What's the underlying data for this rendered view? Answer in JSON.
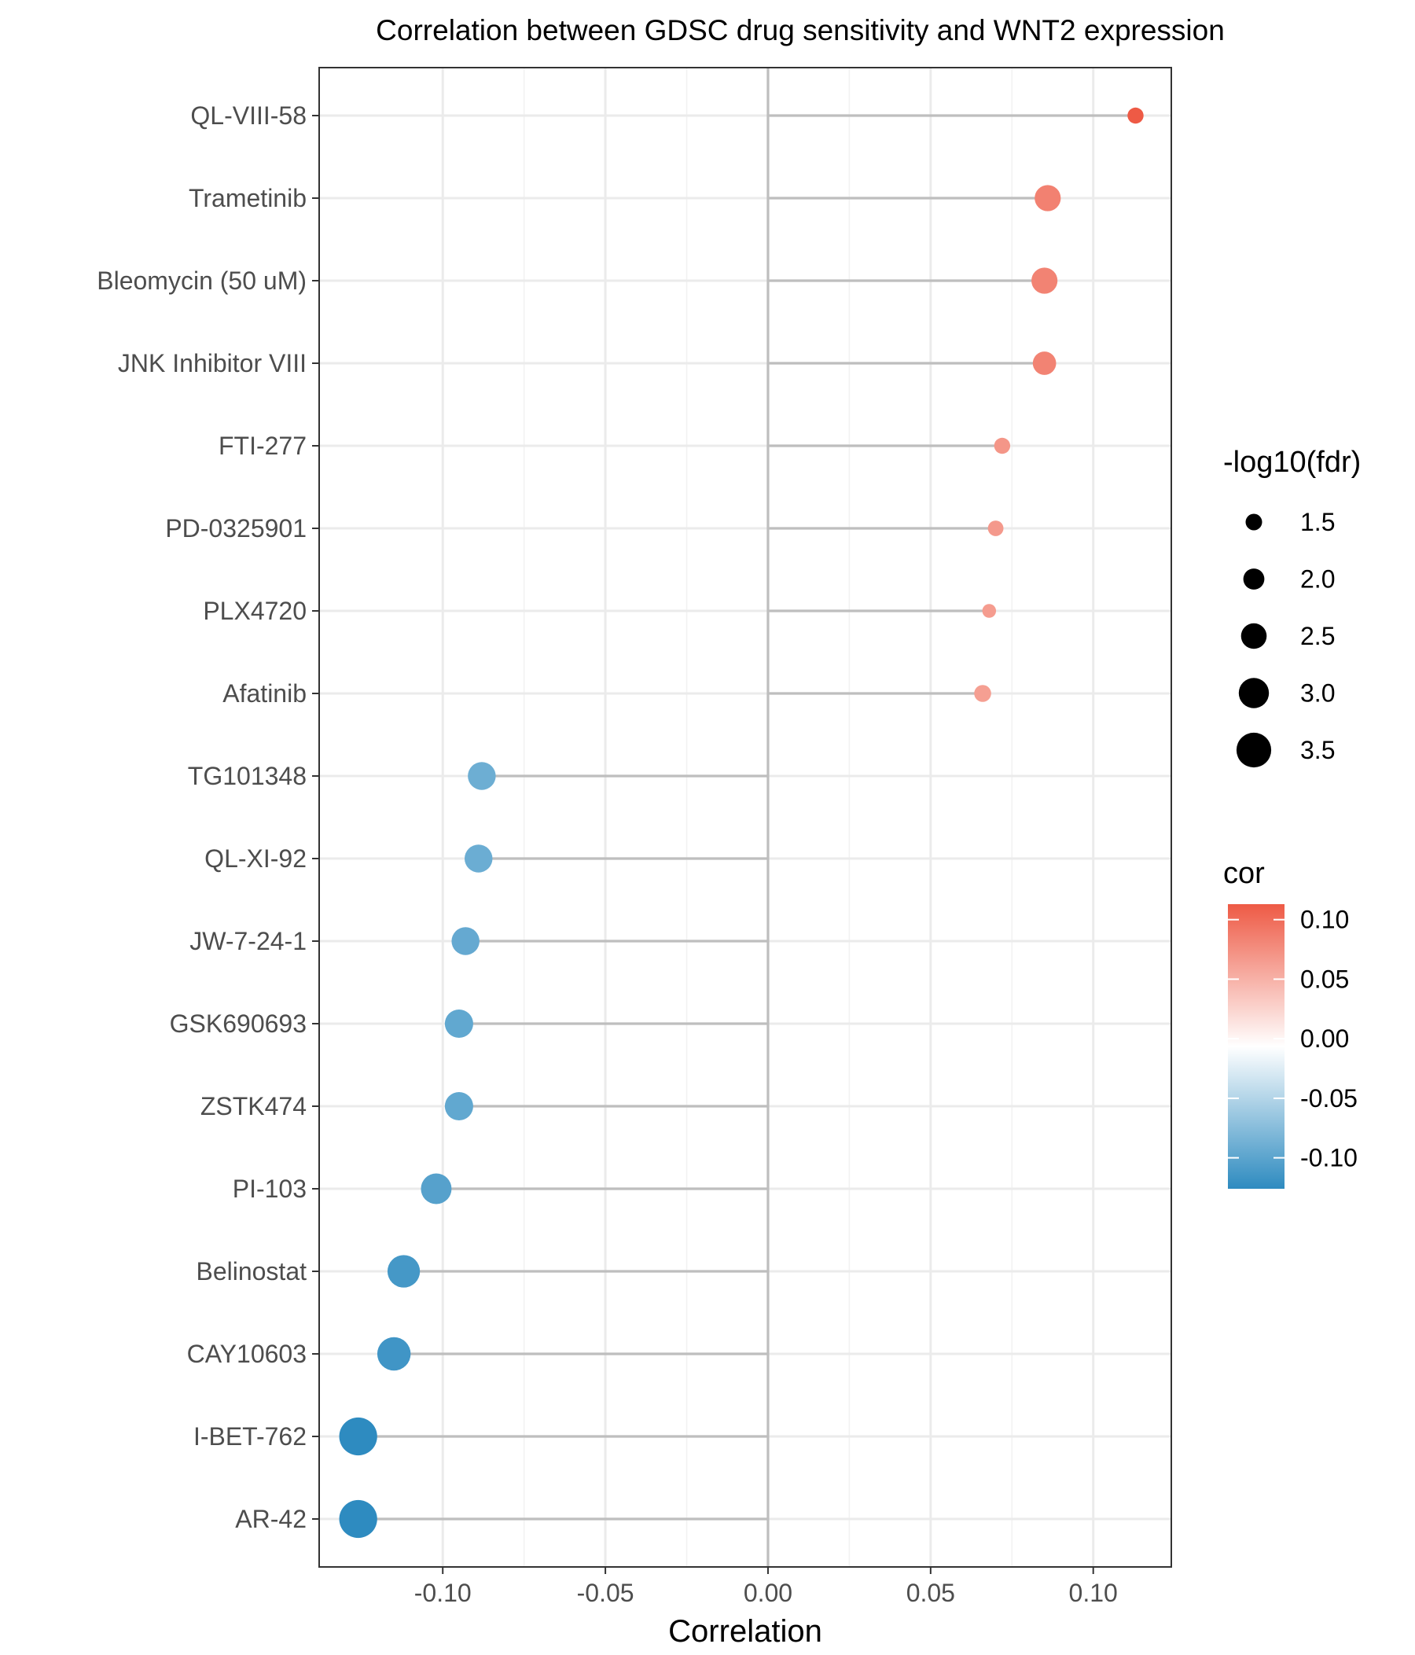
{
  "chart_data": {
    "type": "lollipop",
    "title": "Correlation between GDSC drug sensitivity and WNT2 expression",
    "xlabel": "Correlation",
    "ylabel": "",
    "xlim": [
      -0.138,
      0.124
    ],
    "x_ticks": [
      -0.1,
      -0.05,
      0.0,
      0.05,
      0.1
    ],
    "x_tick_labels": [
      "-0.10",
      "-0.05",
      "0.00",
      "0.05",
      "0.10"
    ],
    "grid": true,
    "zero_line": true,
    "legend_position": "right",
    "categories": [
      "QL-VIII-58",
      "Trametinib",
      "Bleomycin (50 uM)",
      "JNK Inhibitor VIII",
      "FTI-277",
      "PD-0325901",
      "PLX4720",
      "Afatinib",
      "TG101348",
      "QL-XI-92",
      "JW-7-24-1",
      "GSK690693",
      "ZSTK474",
      "PI-103",
      "Belinostat",
      "CAY10603",
      "I-BET-762",
      "AR-42"
    ],
    "cor": [
      0.113,
      0.086,
      0.085,
      0.085,
      0.072,
      0.07,
      0.068,
      0.066,
      -0.088,
      -0.089,
      -0.093,
      -0.095,
      -0.095,
      -0.102,
      -0.112,
      -0.115,
      -0.126,
      -0.126
    ],
    "neg_log10_fdr": [
      1.45,
      2.55,
      2.55,
      2.25,
      1.45,
      1.4,
      1.2,
      1.55,
      2.75,
      2.75,
      2.75,
      2.8,
      2.8,
      3.05,
      3.25,
      3.35,
      3.85,
      3.85
    ],
    "size_legend": {
      "title": "-log10(fdr)",
      "values": [
        1.5,
        2.0,
        2.5,
        3.0,
        3.5
      ],
      "labels": [
        "1.5",
        "2.0",
        "2.5",
        "3.0",
        "3.5"
      ]
    },
    "color_legend": {
      "title": "cor",
      "ticks": [
        0.1,
        0.05,
        0.0,
        -0.05,
        -0.1
      ],
      "labels": [
        "0.10",
        "0.05",
        "0.00",
        "-0.05",
        "-0.10"
      ],
      "range": [
        -0.126,
        0.113
      ],
      "low_color": "#2E8BC0",
      "mid_color": "#FFFFFF",
      "high_color": "#EE5A45"
    }
  }
}
